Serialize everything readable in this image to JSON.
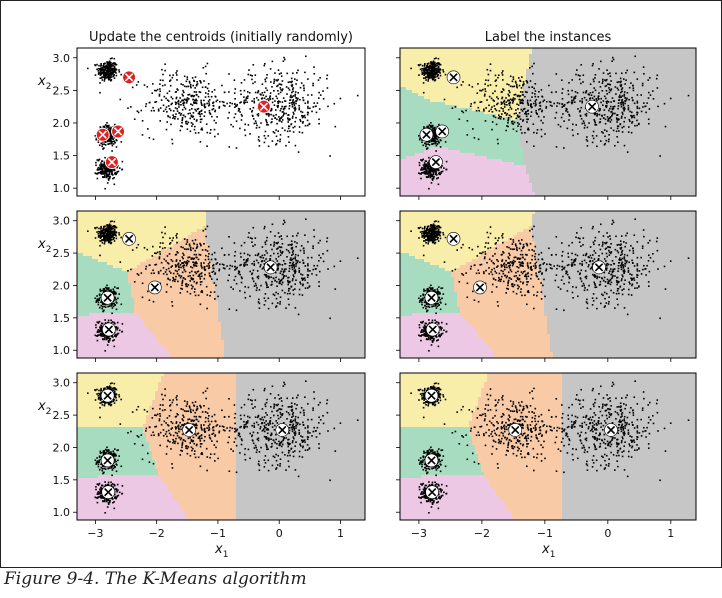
{
  "figure_caption": "Figure 9-4. The K-Means algorithm",
  "axis_labels": {
    "x_base": "x",
    "x_sub": "1",
    "y_base": "x",
    "y_sub": "2"
  },
  "chart_data": {
    "type": "scatter",
    "layout": "3x2 grid of panels",
    "xlim": [
      -3.3,
      1.4
    ],
    "ylim": [
      0.88,
      3.15
    ],
    "xticks": [
      -3,
      -2,
      -1,
      0,
      1
    ],
    "xtick_labels": [
      "−3",
      "−2",
      "−1",
      "0",
      "1"
    ],
    "yticks": [
      1.0,
      1.5,
      2.0,
      2.5,
      3.0
    ],
    "ytick_labels": [
      "1.0",
      "1.5",
      "2.0",
      "2.5",
      "3.0"
    ],
    "grid": false,
    "region_colors": {
      "cluster_top_left": "#f8eeaa",
      "cluster_mid_left": "#a8dcc0",
      "cluster_bottom_left": "#ecc8e4",
      "cluster_middle": "#f8caa6",
      "cluster_right": "#c6c6c6"
    },
    "initial_centroid_color": "#e02020",
    "blobs": [
      {
        "center": [
          -2.8,
          2.8
        ],
        "spread": [
          0.08,
          0.08
        ],
        "n": 260
      },
      {
        "center": [
          -2.8,
          1.8
        ],
        "spread": [
          0.08,
          0.08
        ],
        "n": 230
      },
      {
        "center": [
          -2.8,
          1.3
        ],
        "spread": [
          0.08,
          0.08
        ],
        "n": 230
      },
      {
        "center": [
          -1.5,
          2.3
        ],
        "spread": [
          0.35,
          0.25
        ],
        "n": 330
      },
      {
        "center": [
          0.0,
          2.3
        ],
        "spread": [
          0.4,
          0.28
        ],
        "n": 430
      }
    ],
    "panels": [
      {
        "title": "Update the centroids (initially randomly)",
        "regions": false,
        "centroid_style": "initial",
        "centroids": [
          [
            -2.45,
            2.7
          ],
          [
            -2.88,
            1.82
          ],
          [
            -2.63,
            1.87
          ],
          [
            -2.73,
            1.4
          ],
          [
            -0.25,
            2.25
          ]
        ]
      },
      {
        "title": "Label the instances",
        "regions": true,
        "centroid_style": "normal",
        "centroids": [
          [
            -2.45,
            2.7
          ],
          [
            -2.88,
            1.82
          ],
          [
            -2.63,
            1.87
          ],
          [
            -2.73,
            1.4
          ],
          [
            -0.25,
            2.25
          ]
        ]
      },
      {
        "title": "",
        "regions": true,
        "centroid_style": "normal",
        "centroids": [
          [
            -2.45,
            2.72
          ],
          [
            -2.8,
            1.81
          ],
          [
            -2.03,
            1.97
          ],
          [
            -2.78,
            1.32
          ],
          [
            -0.14,
            2.28
          ]
        ]
      },
      {
        "title": "",
        "regions": true,
        "centroid_style": "normal",
        "centroids": [
          [
            -2.45,
            2.72
          ],
          [
            -2.8,
            1.81
          ],
          [
            -2.03,
            1.97
          ],
          [
            -2.78,
            1.32
          ],
          [
            -0.14,
            2.28
          ]
        ]
      },
      {
        "title": "",
        "regions": true,
        "centroid_style": "normal",
        "centroids": [
          [
            -2.8,
            2.8
          ],
          [
            -2.8,
            1.8
          ],
          [
            -1.47,
            2.27
          ],
          [
            -2.79,
            1.31
          ],
          [
            0.05,
            2.27
          ]
        ]
      },
      {
        "title": "",
        "regions": true,
        "centroid_style": "normal",
        "centroids": [
          [
            -2.8,
            2.8
          ],
          [
            -2.8,
            1.8
          ],
          [
            -1.47,
            2.27
          ],
          [
            -2.79,
            1.31
          ],
          [
            0.05,
            2.27
          ]
        ]
      }
    ]
  }
}
